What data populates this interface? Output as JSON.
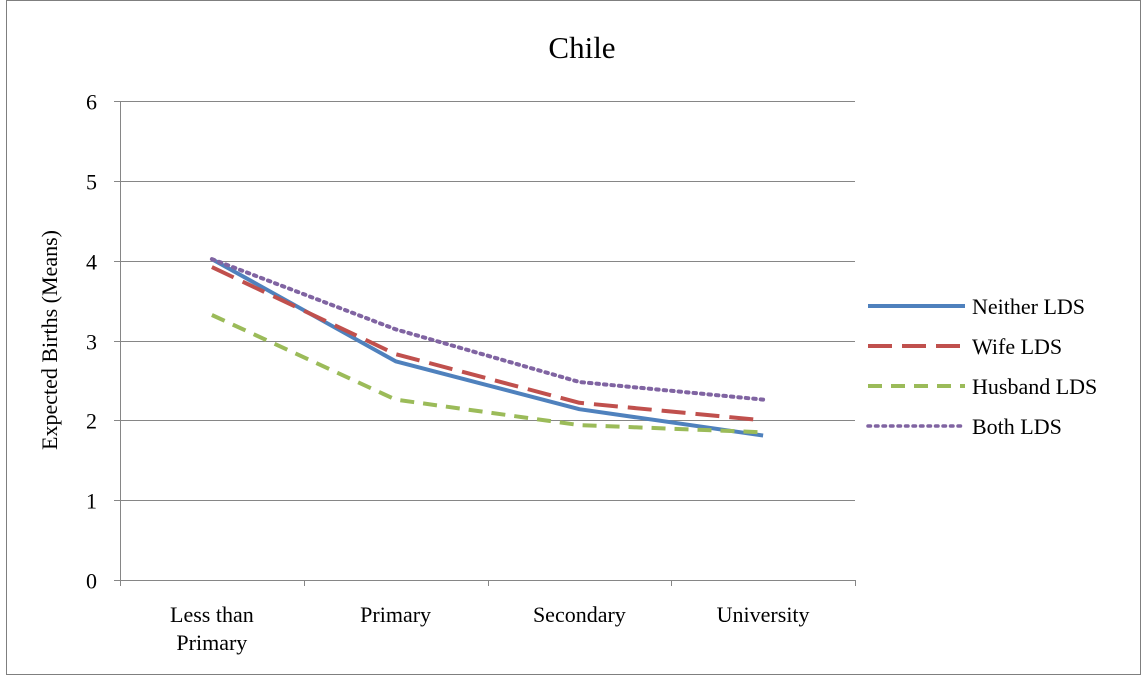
{
  "chart_data": {
    "type": "line",
    "title": "Chile",
    "xlabel": "",
    "ylabel": "Expected Births (Means)",
    "categories": [
      [
        "Less than",
        "Primary"
      ],
      [
        "Primary"
      ],
      [
        "Secondary"
      ],
      [
        "University"
      ]
    ],
    "yticks": [
      "0",
      "1",
      "2",
      "3",
      "4",
      "5",
      "6"
    ],
    "ylim": [
      0,
      6
    ],
    "grid": true,
    "legend": "right",
    "series": [
      {
        "name": "Neither LDS",
        "values": [
          4.02,
          2.74,
          2.14,
          1.81
        ],
        "color": "#4f81bd",
        "dash": "solid"
      },
      {
        "name": "Wife LDS",
        "values": [
          3.92,
          2.83,
          2.22,
          2.0
        ],
        "color": "#c0504d",
        "dash": "long-dash"
      },
      {
        "name": "Husband LDS",
        "values": [
          3.32,
          2.26,
          1.94,
          1.85
        ],
        "color": "#9bbb59",
        "dash": "dash"
      },
      {
        "name": "Both LDS",
        "values": [
          4.02,
          3.14,
          2.48,
          2.26
        ],
        "color": "#8064a2",
        "dash": "dot"
      }
    ]
  }
}
